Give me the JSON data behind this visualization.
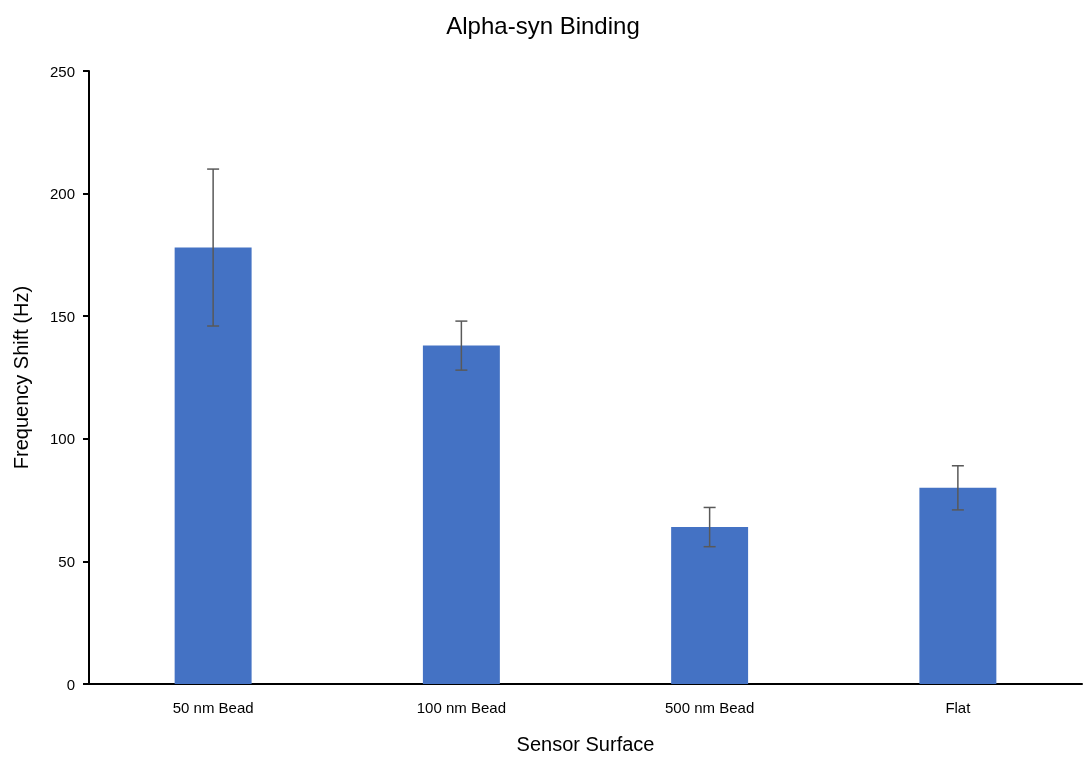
{
  "chart_data": {
    "type": "bar",
    "title": "Alpha-syn Binding",
    "xlabel": "Sensor Surface",
    "ylabel": "Frequency Shift (Hz)",
    "categories": [
      "50 nm Bead",
      "100 nm Bead",
      "500 nm Bead",
      "Flat"
    ],
    "values": [
      178,
      138,
      64,
      80
    ],
    "errors": [
      32,
      10,
      8,
      9
    ],
    "color": "#4472c4",
    "ylim": [
      0,
      250
    ],
    "yticks": [
      0,
      50,
      100,
      150,
      200,
      250
    ],
    "grid": false
  }
}
